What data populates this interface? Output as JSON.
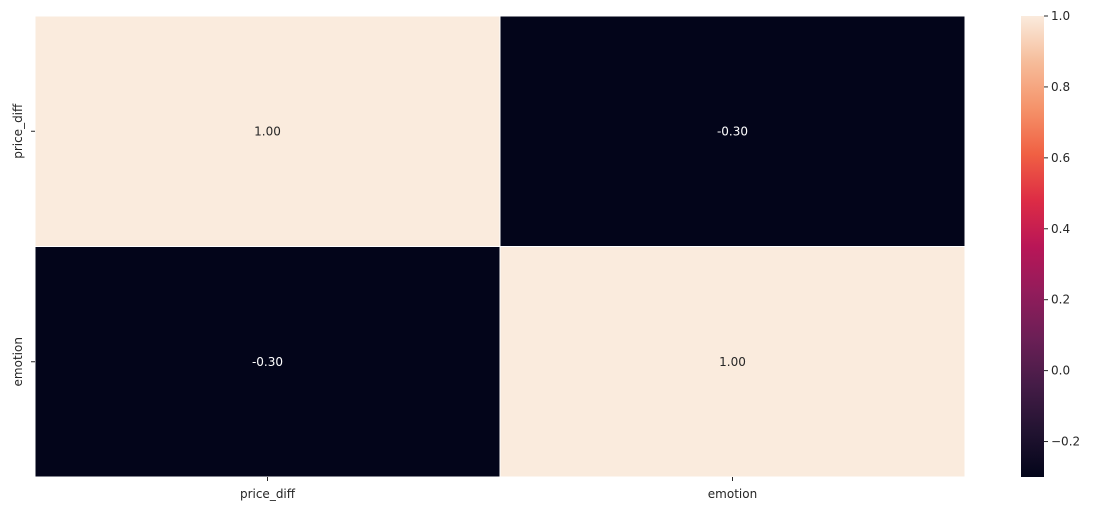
{
  "chart_data": {
    "type": "heatmap",
    "title": "",
    "xlabel": "",
    "ylabel": "",
    "x_categories": [
      "price_diff",
      "emotion"
    ],
    "y_categories": [
      "price_diff",
      "emotion"
    ],
    "values": [
      [
        1.0,
        -0.3
      ],
      [
        -0.3,
        1.0
      ]
    ],
    "annotations": [
      [
        "1.00",
        "-0.30"
      ],
      [
        "-0.30",
        "1.00"
      ]
    ],
    "colormap": "rocket",
    "colorbar": {
      "range": [
        -0.3,
        1.0
      ],
      "ticks": [
        -0.2,
        0.0,
        0.2,
        0.4,
        0.6,
        0.8,
        1.0
      ],
      "tick_labels": [
        "−0.2",
        "0.0",
        "0.2",
        "0.4",
        "0.6",
        "0.8",
        "1.0"
      ]
    },
    "cell_separator_color": "#ffffff",
    "dark_color": "#03051a",
    "light_color": "#faebdd"
  }
}
